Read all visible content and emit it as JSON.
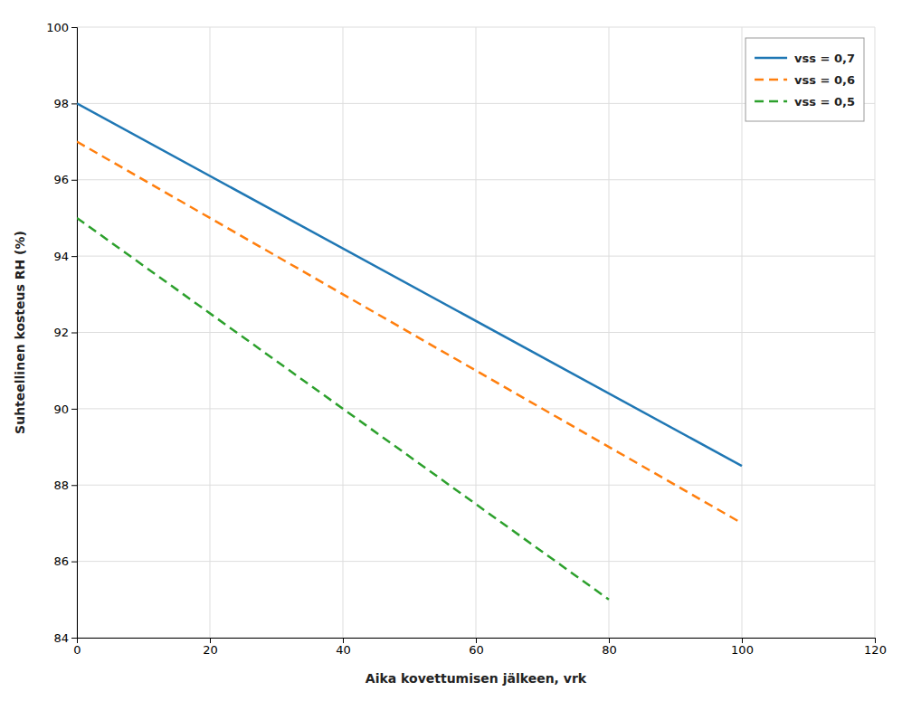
{
  "chart_data": {
    "type": "line",
    "xlabel": "Aika kovettumisen jälkeen, vrk",
    "ylabel": "Suhteellinen kosteus RH (%)",
    "xlim": [
      0,
      120
    ],
    "ylim": [
      84,
      100
    ],
    "xticks": [
      0,
      20,
      40,
      60,
      80,
      100,
      120
    ],
    "yticks": [
      84,
      86,
      88,
      90,
      92,
      94,
      96,
      98,
      100
    ],
    "grid": true,
    "legend": "upper right",
    "series": [
      {
        "name": "vss = 0,7",
        "line_style": "solid",
        "x": [
          0,
          100
        ],
        "values": [
          98,
          88.5
        ]
      },
      {
        "name": "vss = 0,6",
        "line_style": "dashed",
        "x": [
          0,
          100
        ],
        "values": [
          97,
          87
        ]
      },
      {
        "name": "vss = 0,5",
        "line_style": "dashed",
        "x": [
          0,
          80
        ],
        "values": [
          95,
          85
        ]
      }
    ]
  }
}
